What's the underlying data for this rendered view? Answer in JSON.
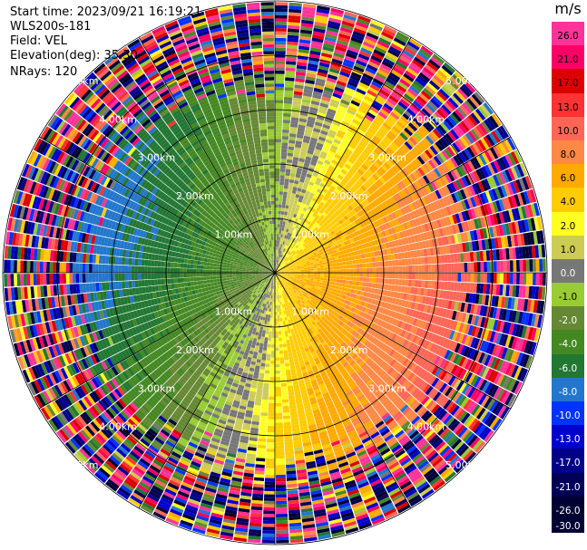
{
  "header": {
    "start_time": "Start time: 2023/09/21 16:19:21",
    "instrument": "WLS200s-181",
    "field": "Field: VEL",
    "elevation": "Elevation(deg): 35.30",
    "nrays": "NRays: 120"
  },
  "colorbar": {
    "unit": "m/s",
    "colors": [
      "#ff3399",
      "#ff0066",
      "#dd0000",
      "#ff3333",
      "#ff6655",
      "#ff8844",
      "#ffaa00",
      "#ffcc00",
      "#ffff22",
      "#cccc55",
      "#777777",
      "#99cc33",
      "#668833",
      "#448822",
      "#227733",
      "#2277cc",
      "#0033ff",
      "#0000cc",
      "#000088",
      "#000055",
      "#000033"
    ],
    "ticks": [
      "26.0",
      "21.0",
      "17.0",
      "13.0",
      "10.0",
      "8.0",
      "6.0",
      "4.0",
      "2.0",
      "1.0",
      "0.0",
      "-1.0",
      "-2.0",
      "-4.0",
      "-6.0",
      "-8.0",
      "-10.0",
      "-13.0",
      "-17.0",
      "-21.0",
      "-26.0",
      "-30.0"
    ]
  },
  "chart_data": {
    "type": "heatmap",
    "projection": "polar-ppi",
    "title": "",
    "field": "VEL",
    "unit": "m/s",
    "nrays": 120,
    "range_rings_km": [
      1.0,
      2.0,
      3.0,
      4.0,
      5.0
    ],
    "ring_labels": [
      "1.00km",
      "2.00km",
      "3.00km",
      "4.00km",
      "5.00km"
    ],
    "max_range_km": 5.0,
    "azimuth_spoke_step_deg": 30,
    "vmin": -30.0,
    "vmax": 26.0,
    "velocity_pattern": {
      "inbound_positive_toward_east": true,
      "peak_speed_ms": 9.0,
      "noise_beyond_km": 3.6
    }
  }
}
